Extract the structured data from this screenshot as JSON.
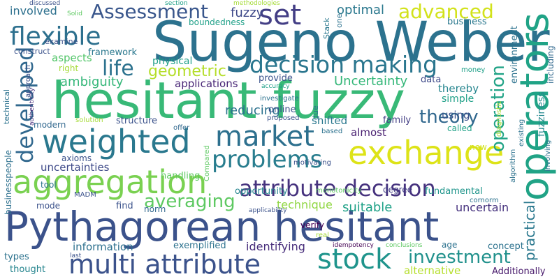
{
  "words": [
    {
      "text": "Sugeno Weber",
      "color": "#2c728e",
      "vertical": false
    },
    {
      "text": "hesitant fuzzy",
      "color": "#38b977",
      "vertical": false
    },
    {
      "text": "Pythagorean hesitant",
      "color": "#3b528b",
      "vertical": false
    },
    {
      "text": "aggregation",
      "color": "#7ad151",
      "vertical": false
    },
    {
      "text": "exchange",
      "color": "#dde318",
      "vertical": false
    },
    {
      "text": "operators",
      "color": "#20a386",
      "vertical": true
    },
    {
      "text": "weighted",
      "color": "#2a788e",
      "vertical": false
    },
    {
      "text": "multi attribute",
      "color": "#3b528b",
      "vertical": false
    },
    {
      "text": "attribute decision",
      "color": "#46327e",
      "vertical": false
    },
    {
      "text": "decision making",
      "color": "#2a768e",
      "vertical": false
    },
    {
      "text": "market",
      "color": "#2d708e",
      "vertical": false
    },
    {
      "text": "flexible",
      "color": "#2d708e",
      "vertical": false
    },
    {
      "text": "set",
      "color": "#433e85",
      "vertical": false
    },
    {
      "text": "problems",
      "color": "#287d8e",
      "vertical": false
    },
    {
      "text": "stock",
      "color": "#1f948c",
      "vertical": false
    },
    {
      "text": "Assessment",
      "color": "#39568c",
      "vertical": false
    },
    {
      "text": "advanced",
      "color": "#d2e21b",
      "vertical": false
    },
    {
      "text": "developed",
      "color": "#31688e",
      "vertical": true
    },
    {
      "text": "investment",
      "color": "#21918c",
      "vertical": false
    },
    {
      "text": "averaging",
      "color": "#5ec962",
      "vertical": false
    },
    {
      "text": "operation",
      "color": "#20a386",
      "vertical": true
    },
    {
      "text": "life",
      "color": "#2c728e",
      "vertical": false
    },
    {
      "text": "geometric",
      "color": "#b5de2b",
      "vertical": false
    },
    {
      "text": "theory",
      "color": "#31688e",
      "vertical": false
    },
    {
      "text": "practical",
      "color": "#2a788e",
      "vertical": true
    },
    {
      "text": "Uncertainty",
      "color": "#35b779",
      "vertical": false
    },
    {
      "text": "ambiguity",
      "color": "#35b779",
      "vertical": false
    },
    {
      "text": "reducing",
      "color": "#2c728e",
      "vertical": false
    },
    {
      "text": "uncertain",
      "color": "#46327e",
      "vertical": false
    },
    {
      "text": "technique",
      "color": "#90d743",
      "vertical": false
    },
    {
      "text": "suitable",
      "color": "#1fa187",
      "vertical": false
    },
    {
      "text": "identifying",
      "color": "#472d7b",
      "vertical": false
    },
    {
      "text": "alternative",
      "color": "#b5de2b",
      "vertical": false
    },
    {
      "text": "optimal",
      "color": "#2a788e",
      "vertical": false
    },
    {
      "text": "involved",
      "color": "#2d708e",
      "vertical": false
    },
    {
      "text": "fuzzy",
      "color": "#3e4989",
      "vertical": false
    },
    {
      "text": "aspects",
      "color": "#52c569",
      "vertical": false
    },
    {
      "text": "framework",
      "color": "#2a788e",
      "vertical": false
    },
    {
      "text": "physical",
      "color": "#1f9e89",
      "vertical": false
    },
    {
      "text": "applications",
      "color": "#482576",
      "vertical": false
    },
    {
      "text": "thereby",
      "color": "#25858e",
      "vertical": false
    },
    {
      "text": "using",
      "color": "#3b528b",
      "vertical": false
    },
    {
      "text": "almost",
      "color": "#481f70",
      "vertical": false
    },
    {
      "text": "shifted",
      "color": "#2a788e",
      "vertical": false
    },
    {
      "text": "structure",
      "color": "#3b528b",
      "vertical": false
    },
    {
      "text": "online",
      "color": "#3b528b",
      "vertical": false
    },
    {
      "text": "simple",
      "color": "#1fa088",
      "vertical": false
    },
    {
      "text": "family",
      "color": "#433e85",
      "vertical": false
    },
    {
      "text": "uncertainties",
      "color": "#3e4a89",
      "vertical": false
    },
    {
      "text": "opportunity",
      "color": "#25848e",
      "vertical": false
    },
    {
      "text": "handling",
      "color": "#5ec962",
      "vertical": false
    },
    {
      "text": "information",
      "color": "#2d708e",
      "vertical": false
    },
    {
      "text": "exemplified",
      "color": "#2c728e",
      "vertical": false
    },
    {
      "text": "fundamental",
      "color": "#1f958b",
      "vertical": false
    },
    {
      "text": "fuzziness",
      "color": "#23888e",
      "vertical": true
    },
    {
      "text": "environment",
      "color": "#2c728e",
      "vertical": true
    },
    {
      "text": "concept",
      "color": "#2c728e",
      "vertical": false
    },
    {
      "text": "Additionally",
      "color": "#481a6c",
      "vertical": false
    },
    {
      "text": "business",
      "color": "#2a788e",
      "vertical": false
    },
    {
      "text": "called",
      "color": "#1fa187",
      "vertical": false
    },
    {
      "text": "modern",
      "color": "#31688e",
      "vertical": false
    },
    {
      "text": "businesspeople",
      "color": "#2d708e",
      "vertical": true
    },
    {
      "text": "axioms",
      "color": "#3b528b",
      "vertical": false
    },
    {
      "text": "norm",
      "color": "#31688e",
      "vertical": false
    },
    {
      "text": "find",
      "color": "#3b528b",
      "vertical": false
    },
    {
      "text": "mode",
      "color": "#3b528b",
      "vertical": false
    },
    {
      "text": "types",
      "color": "#2c728e",
      "vertical": false
    },
    {
      "text": "thought",
      "color": "#25858e",
      "vertical": false
    },
    {
      "text": "age",
      "color": "#2c728e",
      "vertical": false
    },
    {
      "text": "degree",
      "color": "#433e85",
      "vertical": false
    },
    {
      "text": "verify",
      "color": "#440154",
      "vertical": false
    },
    {
      "text": "provide",
      "color": "#3b528b",
      "vertical": false
    },
    {
      "text": "data",
      "color": "#3e4989",
      "vertical": false
    },
    {
      "text": "boundedness",
      "color": "#1fa088",
      "vertical": false
    },
    {
      "text": "examine",
      "color": "#3b528b",
      "vertical": false
    },
    {
      "text": "construct",
      "color": "#3b528b",
      "vertical": false
    },
    {
      "text": "right",
      "color": "#a5db36",
      "vertical": false
    },
    {
      "text": "tool",
      "color": "#2c728e",
      "vertical": false
    },
    {
      "text": "technical",
      "color": "#2c728e",
      "vertical": true
    },
    {
      "text": "offer",
      "color": "#31688e",
      "vertical": false
    },
    {
      "text": "solution",
      "color": "#a5db36",
      "vertical": false
    },
    {
      "text": "proposed",
      "color": "#3b528b",
      "vertical": false
    },
    {
      "text": "based",
      "color": "#2c728e",
      "vertical": false
    },
    {
      "text": "motivating",
      "color": "#3b528b",
      "vertical": false
    },
    {
      "text": "investigate",
      "color": "#2c728e",
      "vertical": false
    },
    {
      "text": "accuracy",
      "color": "#1fa088",
      "vertical": false
    },
    {
      "text": "Compared",
      "color": "#5ec962",
      "vertical": true
    },
    {
      "text": "monotonicity",
      "color": "#5ec962",
      "vertical": false
    },
    {
      "text": "cornorm",
      "color": "#2c728e",
      "vertical": false
    },
    {
      "text": "MADM",
      "color": "#3b528b",
      "vertical": false
    },
    {
      "text": "idempotency",
      "color": "#440154",
      "vertical": false
    },
    {
      "text": "conclusions",
      "color": "#5ec962",
      "vertical": false
    },
    {
      "text": "real",
      "color": "#a5db36",
      "vertical": false
    },
    {
      "text": "applicability",
      "color": "#3b528b",
      "vertical": false
    },
    {
      "text": "last",
      "color": "#3b528b",
      "vertical": false
    },
    {
      "text": "money",
      "color": "#1fa088",
      "vertical": false
    },
    {
      "text": "new",
      "color": "#d2e21b",
      "vertical": false
    },
    {
      "text": "Stack",
      "color": "#2a788e",
      "vertical": true
    },
    {
      "text": "one",
      "color": "#2c728e",
      "vertical": true
    },
    {
      "text": "due",
      "color": "#2c728e",
      "vertical": true
    },
    {
      "text": "authenticity",
      "color": "#472d7b",
      "vertical": true
    },
    {
      "text": "approach",
      "color": "#3b528b",
      "vertical": true
    },
    {
      "text": "existing",
      "color": "#2c728e",
      "vertical": true
    },
    {
      "text": "diagnostic",
      "color": "#a5db36",
      "vertical": true
    },
    {
      "text": "algorithm",
      "color": "#2c728e",
      "vertical": true
    },
    {
      "text": "involving",
      "color": "#2c728e",
      "vertical": true
    },
    {
      "text": "including",
      "color": "#31688e",
      "vertical": true
    },
    {
      "text": "discussed",
      "color": "#3b528b",
      "vertical": false
    },
    {
      "text": "Solid",
      "color": "#5ec962",
      "vertical": false
    },
    {
      "text": "section",
      "color": "#1fa088",
      "vertical": false
    },
    {
      "text": "methodologies",
      "color": "#a5db36",
      "vertical": false
    }
  ]
}
